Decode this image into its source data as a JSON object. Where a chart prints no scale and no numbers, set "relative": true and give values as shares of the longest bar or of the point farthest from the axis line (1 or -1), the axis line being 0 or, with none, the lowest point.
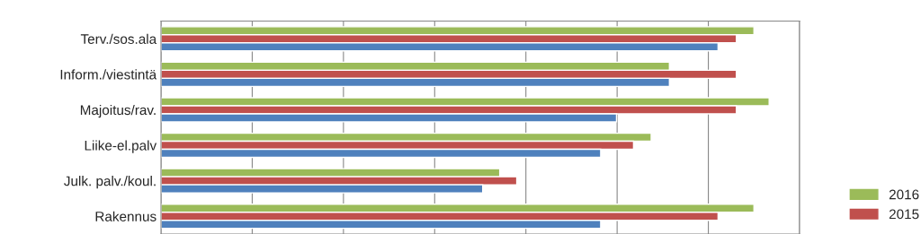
{
  "chart_data": {
    "type": "bar",
    "orientation": "horizontal",
    "relative": true,
    "grid": "x",
    "legend": "right",
    "categories": [
      "Terv./sos.ala",
      "Inform./viestintä",
      "Majoitus/rav.",
      "Liike-el.palv",
      "Julk. palv./koul.",
      "Rakennus"
    ],
    "series": [
      {
        "name": "2016",
        "color": "#9bbb59",
        "values": [
          0.975,
          0.836,
          1,
          0.806,
          0.557,
          0.975
        ]
      },
      {
        "name": "2015",
        "color": "#c0504d",
        "values": [
          0.946,
          0.946,
          0.946,
          0.777,
          0.585,
          0.916
        ]
      },
      {
        "color": "#4f81bd",
        "values": [
          0.916,
          0.836,
          0.749,
          0.723,
          0.529,
          0.723
        ]
      }
    ]
  }
}
